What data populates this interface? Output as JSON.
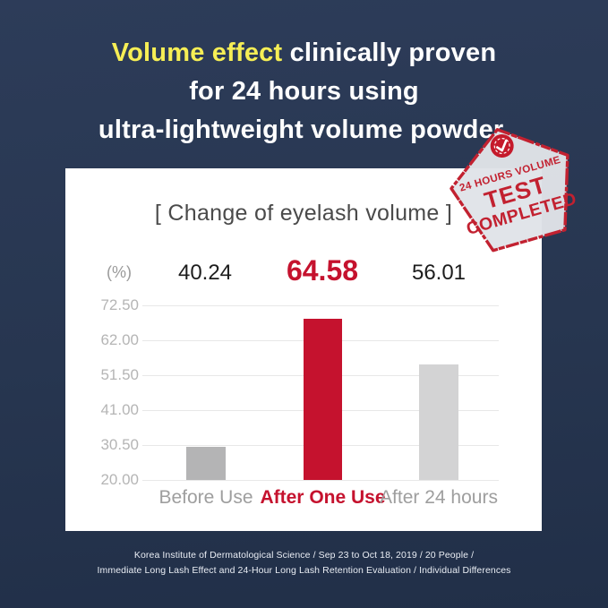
{
  "page": {
    "background_top": "#2d3c59",
    "background_bottom": "#212f48"
  },
  "headline": {
    "highlight": "Volume effect",
    "line1_rest": " clinically proven",
    "line2": "for 24 hours using",
    "line3": "ultra-lightweight volume powder.",
    "highlight_color": "#f6ee55",
    "text_color": "#ffffff"
  },
  "stamp": {
    "line1": "24 HOURS VOLUME",
    "line2": "TEST",
    "line3": "COMPLETED",
    "red": "#c22130",
    "fill": "#e0e3e8",
    "check_icon_name": "check"
  },
  "chart_data": {
    "type": "bar",
    "title": "[ Change of eyelash volume ]",
    "unit_label": "(%)",
    "categories": [
      "Before Use",
      "After One Use",
      "After 24 hours"
    ],
    "values": [
      40.24,
      64.58,
      56.01
    ],
    "value_labels": [
      "40.24",
      "64.58",
      "56.01"
    ],
    "highlight_index": 1,
    "y_ticks": [
      "72.50",
      "62.00",
      "51.50",
      "41.00",
      "30.50",
      "20.00"
    ],
    "ylim": [
      20.0,
      72.5
    ],
    "grid": true,
    "legend_position": "none",
    "bar_colors": [
      "#b4b4b5",
      "#c5122e",
      "#d3d3d4"
    ],
    "category_colors": [
      "#9e9e9e",
      "#c5122e",
      "#9e9e9e"
    ],
    "value_label_colors": [
      "#1d1d1d",
      "#c5122e",
      "#1d1d1d"
    ],
    "bar_visual_fraction": [
      0.19,
      0.923,
      0.662
    ]
  },
  "footer": {
    "line1": "Korea Institute of Dermatological Science / Sep 23 to Oct 18, 2019 / 20 People /",
    "line2": "Immediate Long Lash Effect and 24-Hour Long Lash Retention Evaluation / Individual Differences"
  }
}
